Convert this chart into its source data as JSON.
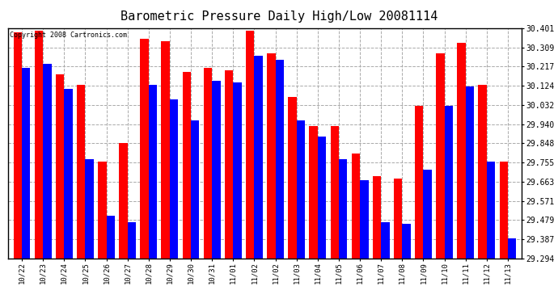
{
  "title": "Barometric Pressure Daily High/Low 20081114",
  "copyright": "Copyright 2008 Cartronics.com",
  "dates": [
    "10/22",
    "10/23",
    "10/24",
    "10/25",
    "10/26",
    "10/27",
    "10/28",
    "10/29",
    "10/30",
    "10/31",
    "11/01",
    "11/02",
    "11/02",
    "11/03",
    "11/04",
    "11/05",
    "11/06",
    "11/07",
    "11/08",
    "11/09",
    "11/10",
    "11/11",
    "11/12",
    "11/13"
  ],
  "highs": [
    30.38,
    30.39,
    30.18,
    30.13,
    29.76,
    29.85,
    30.35,
    30.34,
    30.19,
    30.21,
    30.2,
    30.39,
    30.28,
    30.07,
    29.93,
    29.93,
    29.8,
    29.69,
    29.68,
    30.03,
    30.28,
    30.33,
    30.13,
    29.76
  ],
  "lows": [
    30.21,
    30.23,
    30.11,
    29.77,
    29.5,
    29.47,
    30.13,
    30.06,
    29.96,
    30.15,
    30.14,
    30.27,
    30.25,
    29.96,
    29.88,
    29.77,
    29.67,
    29.47,
    29.46,
    29.72,
    30.03,
    30.12,
    29.76,
    29.39
  ],
  "ymin": 29.294,
  "ymax": 30.401,
  "yticks": [
    29.294,
    29.387,
    29.479,
    29.571,
    29.663,
    29.755,
    29.848,
    29.94,
    30.032,
    30.124,
    30.217,
    30.309,
    30.401
  ],
  "ytick_labels": [
    "29.294",
    "29.387",
    "29.479",
    "29.571",
    "29.663",
    "29.755",
    "29.848",
    "29.940",
    "30.032",
    "30.124",
    "30.217",
    "30.309",
    "30.401"
  ],
  "high_color": "#ff0000",
  "low_color": "#0000ff",
  "background_color": "#ffffff",
  "grid_color": "#aaaaaa",
  "title_fontsize": 11,
  "copyright_fontsize": 6,
  "bar_width": 0.4
}
